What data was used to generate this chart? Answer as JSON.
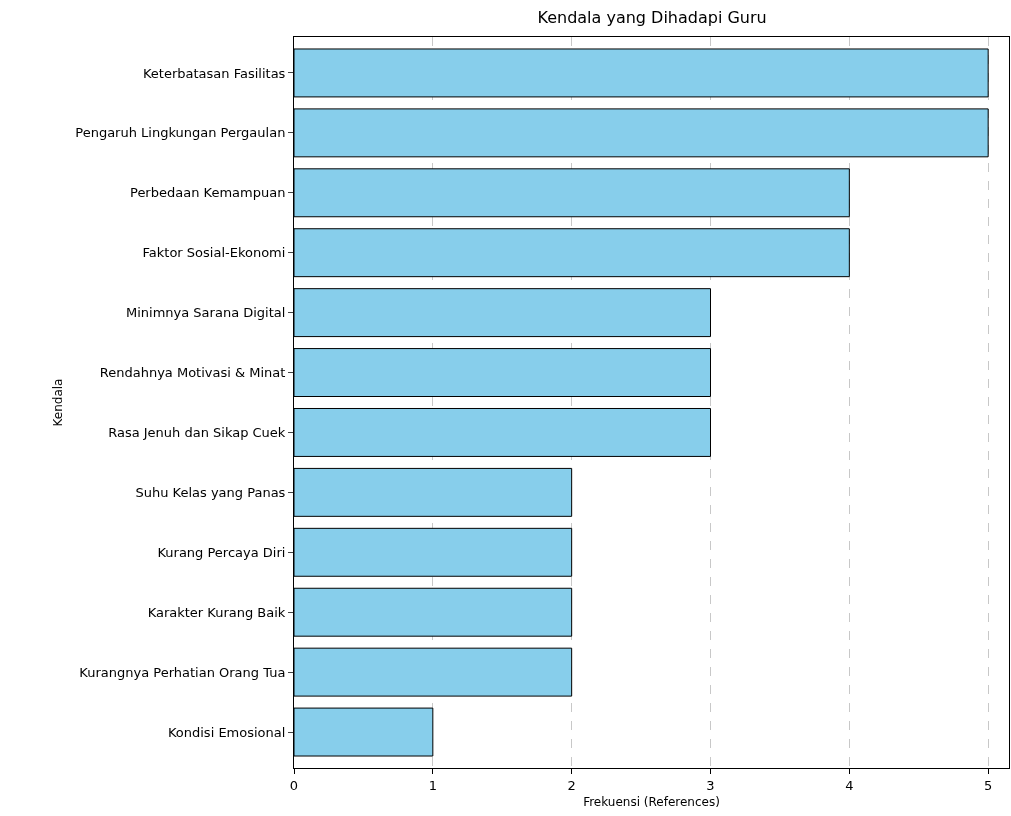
{
  "chart_data": {
    "type": "bar",
    "orientation": "horizontal",
    "title": "Kendala yang Dihadapi Guru",
    "xlabel": "Frekuensi (References)",
    "ylabel": "Kendala",
    "categories": [
      "Keterbatasan Fasilitas",
      "Pengaruh Lingkungan Pergaulan",
      "Perbedaan Kemampuan",
      "Faktor Sosial-Ekonomi",
      "Minimnya Sarana Digital",
      "Rendahnya Motivasi & Minat",
      "Rasa Jenuh dan Sikap Cuek",
      "Suhu Kelas yang Panas",
      "Kurang Percaya Diri",
      "Karakter Kurang Baik",
      "Kurangnya Perhatian Orang Tua",
      "Kondisi Emosional"
    ],
    "values": [
      5,
      5,
      4,
      4,
      3,
      3,
      3,
      2,
      2,
      2,
      2,
      1
    ],
    "color": "#87ceeb",
    "xlim": [
      0,
      5.15
    ],
    "xticks": [
      0,
      1,
      2,
      3,
      4,
      5
    ],
    "grid": "x"
  }
}
